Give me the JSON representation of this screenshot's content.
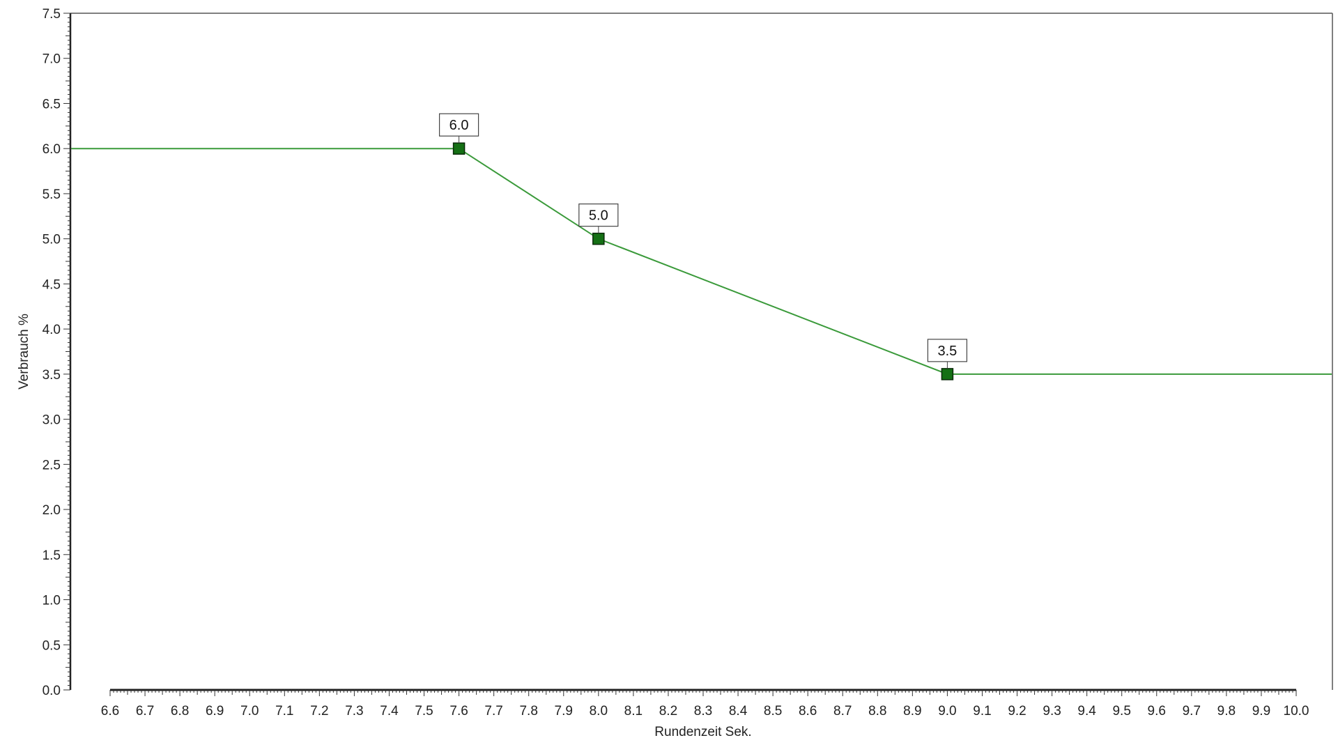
{
  "chart_data": {
    "type": "line",
    "title": "",
    "xlabel": "Rundenzeit Sek.",
    "ylabel": "Verbrauch %",
    "xlim": [
      6.6,
      10.0
    ],
    "ylim": [
      0.0,
      7.5
    ],
    "x_ticks": [
      "6.6",
      "6.7",
      "6.8",
      "6.9",
      "7.0",
      "7.1",
      "7.2",
      "7.3",
      "7.4",
      "7.5",
      "7.6",
      "7.7",
      "7.8",
      "7.9",
      "8.0",
      "8.1",
      "8.2",
      "8.3",
      "8.4",
      "8.5",
      "8.6",
      "8.7",
      "8.8",
      "8.9",
      "9.0",
      "9.1",
      "9.2",
      "9.3",
      "9.4",
      "9.5",
      "9.6",
      "9.7",
      "9.8",
      "9.9",
      "10.0"
    ],
    "y_ticks": [
      "0.0",
      "0.5",
      "1.0",
      "1.5",
      "2.0",
      "2.5",
      "3.0",
      "3.5",
      "4.0",
      "4.5",
      "5.0",
      "5.5",
      "6.0",
      "6.5",
      "7.0",
      "7.5"
    ],
    "grid": false,
    "series": [
      {
        "points": [
          {
            "x": 7.6,
            "y": 6.0,
            "label": "6.0"
          },
          {
            "x": 8.0,
            "y": 5.0,
            "label": "5.0"
          },
          {
            "x": 9.0,
            "y": 3.5,
            "label": "3.5"
          }
        ],
        "extend_left": true,
        "extend_right": true,
        "line_color": "#3a9a3a",
        "marker_color": "#157015",
        "marker_shape": "square"
      }
    ]
  }
}
